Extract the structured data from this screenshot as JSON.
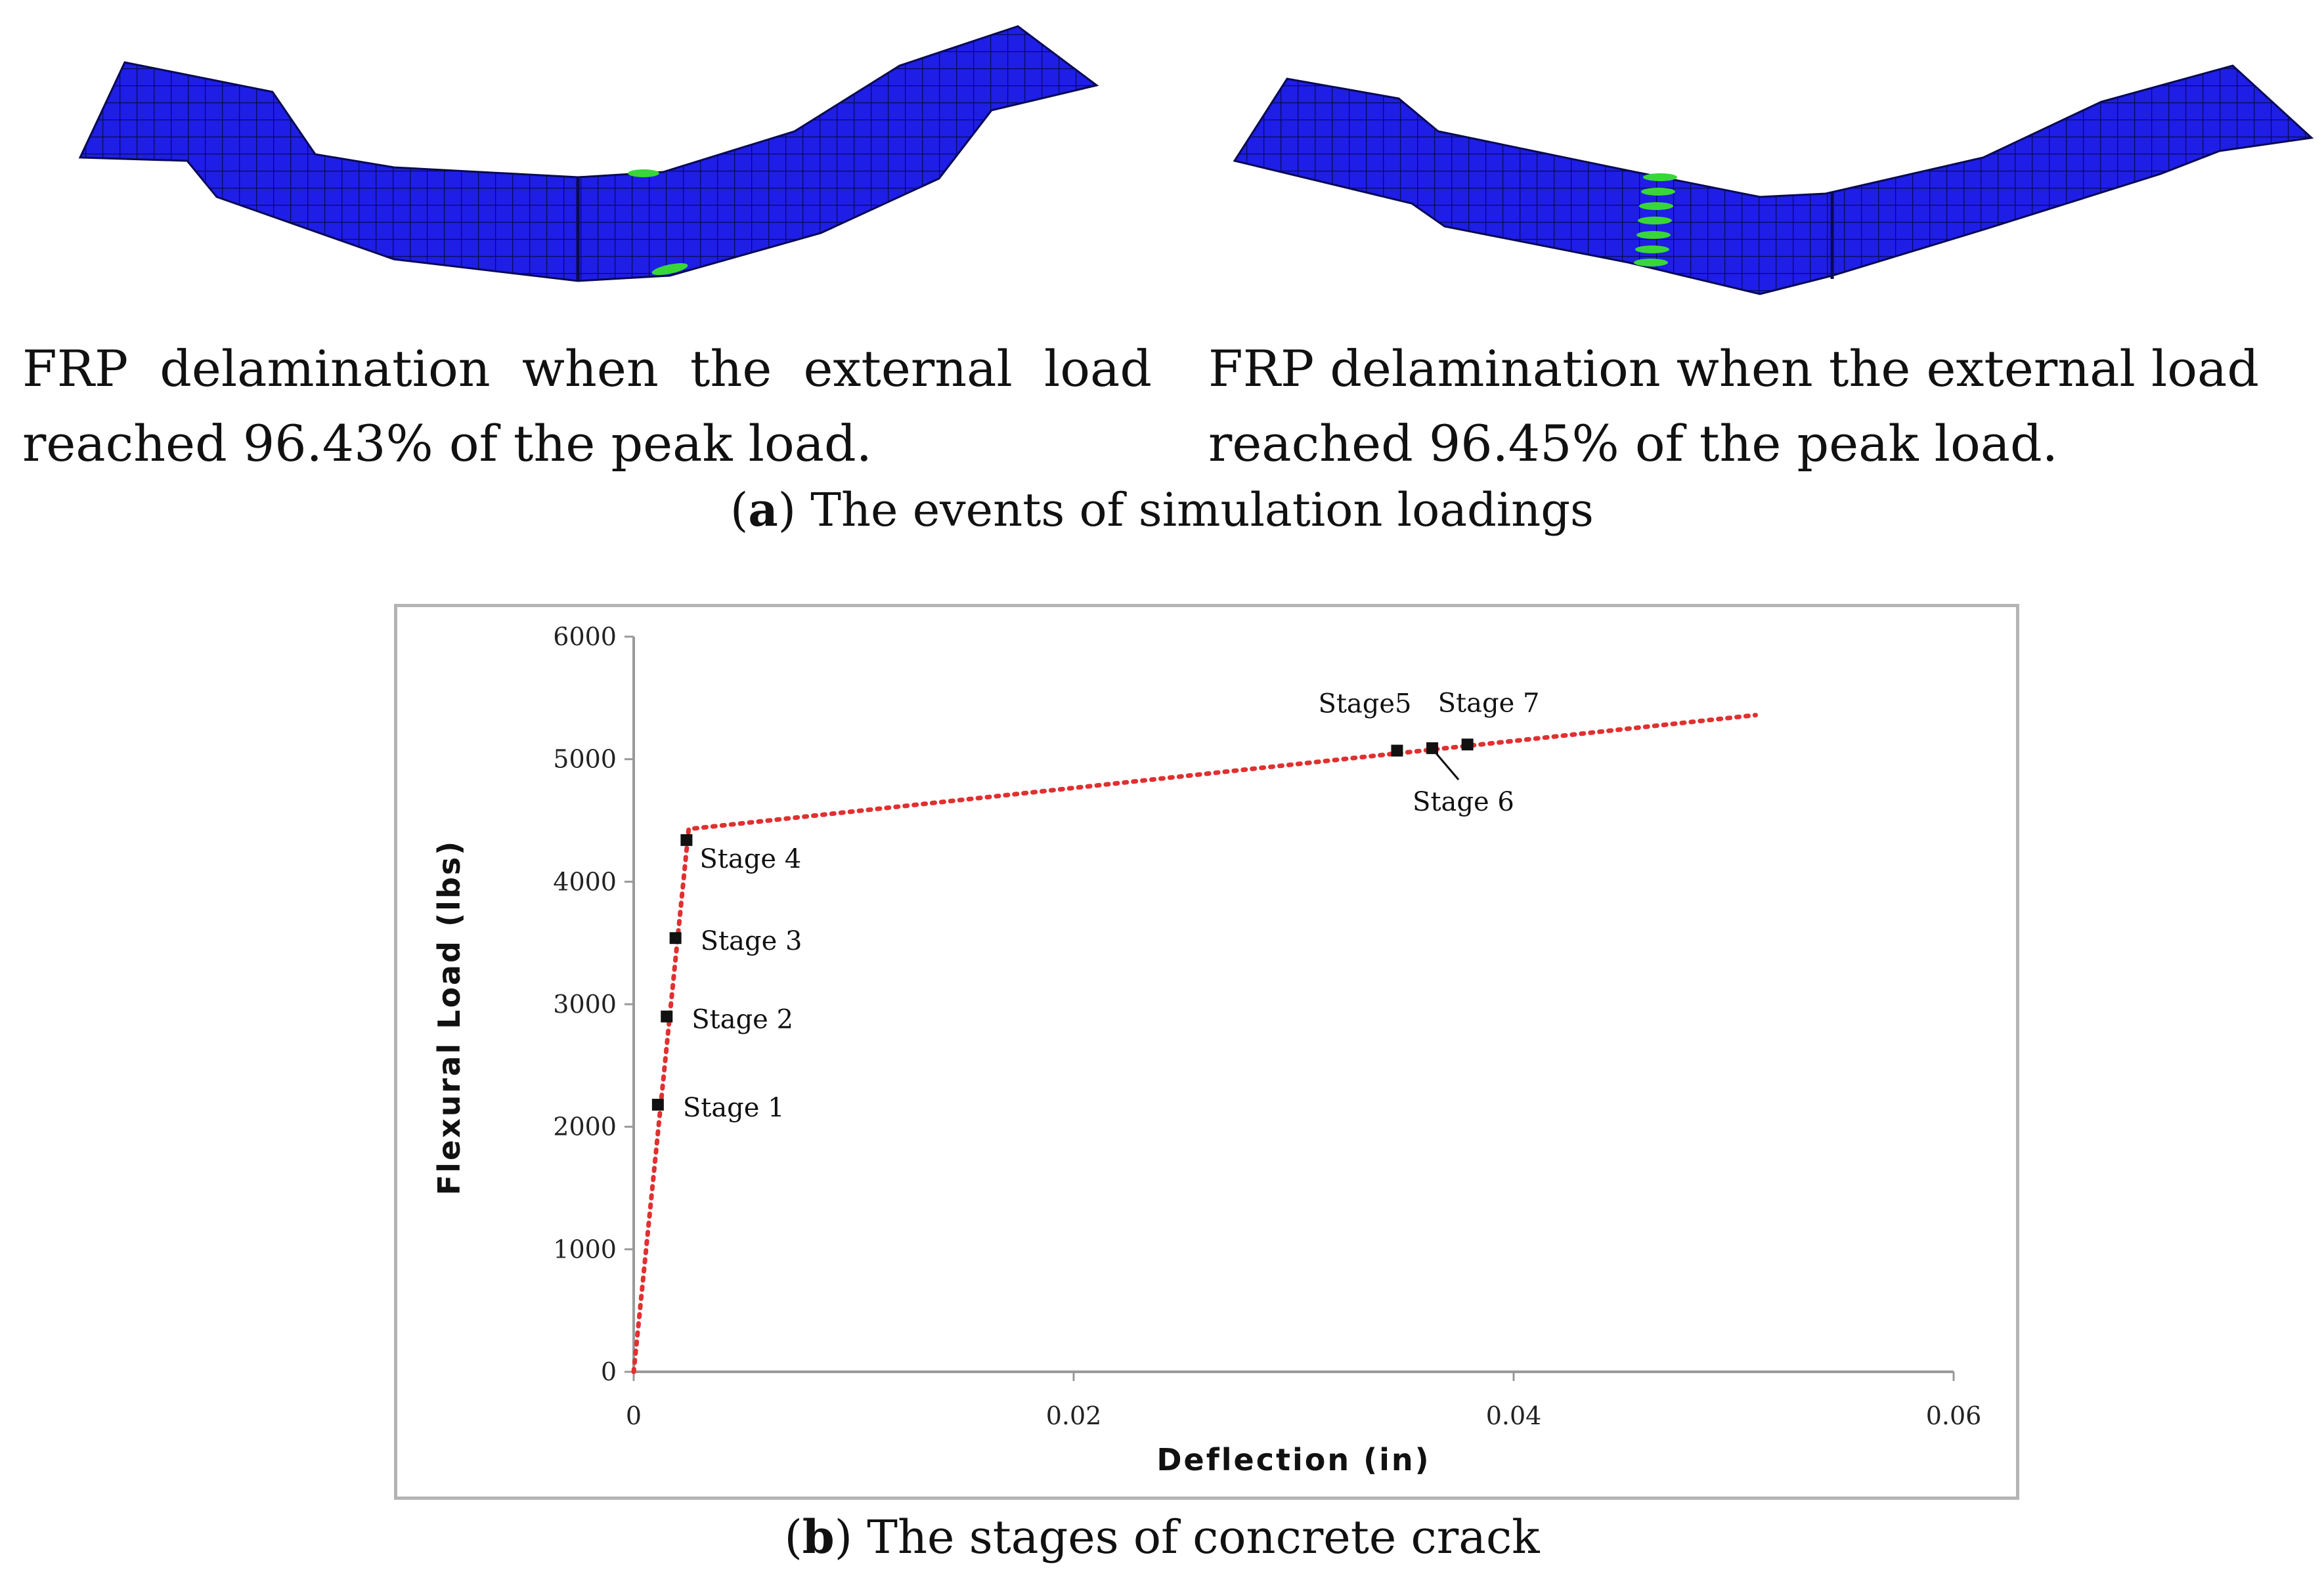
{
  "panel_a": {
    "left_caption": [
      "FRP delamination when the external load",
      "reached 96.43% of the peak load."
    ],
    "right_caption": [
      "FRP delamination when the external load",
      "reached 96.45% of the peak load."
    ],
    "sub_caption_letter": "a",
    "sub_caption_text": ") The events of simulation loadings",
    "colors": {
      "mesh": "#1e1ee6",
      "grid": "#0a0a55",
      "delamination": "#39d639"
    }
  },
  "panel_b": {
    "sub_caption_letter": "b",
    "sub_caption_text": ") The stages of concrete crack"
  },
  "chart_data": {
    "type": "scatter",
    "title": "",
    "xlabel": "Deflection (in)",
    "ylabel": "Flexural Load (lbs)",
    "xlim": [
      0,
      0.06
    ],
    "ylim": [
      0,
      6000
    ],
    "x_ticks": [
      0,
      0.02,
      0.04,
      0.06
    ],
    "x_tick_labels": [
      "0",
      "0.02",
      "0.04",
      "0.06"
    ],
    "y_ticks": [
      0,
      1000,
      2000,
      3000,
      4000,
      5000,
      6000
    ],
    "y_tick_labels": [
      "0",
      "1000",
      "2000",
      "3000",
      "4000",
      "5000",
      "6000"
    ],
    "grid": false,
    "trend_line": {
      "style": "dotted",
      "color": "#e03030",
      "x": [
        0,
        0.0025,
        0.051
      ],
      "y": [
        0,
        4430,
        5360
      ]
    },
    "points": [
      {
        "label": "Stage 1",
        "x": 0.0011,
        "y": 2180
      },
      {
        "label": "Stage 2",
        "x": 0.0015,
        "y": 2900
      },
      {
        "label": "Stage 3",
        "x": 0.0019,
        "y": 3540
      },
      {
        "label": "Stage 4",
        "x": 0.0024,
        "y": 4340
      },
      {
        "label": "Stage5",
        "x": 0.0347,
        "y": 5070
      },
      {
        "label": "Stage 6",
        "x": 0.0363,
        "y": 5090
      },
      {
        "label": "Stage 7",
        "x": 0.0379,
        "y": 5120
      }
    ]
  }
}
